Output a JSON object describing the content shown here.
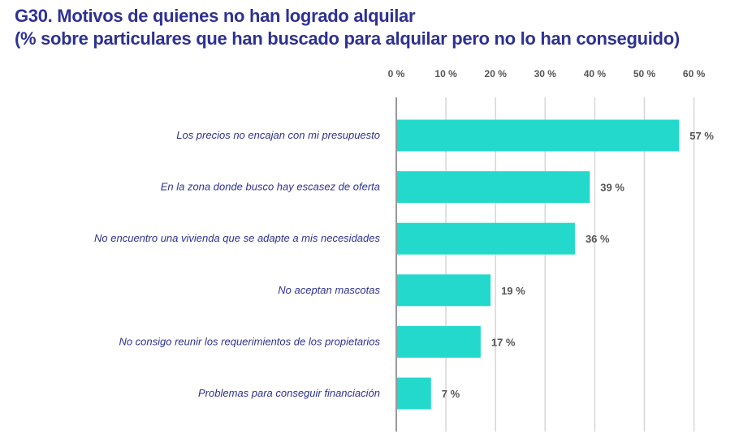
{
  "title_line1": "G30. Motivos de quienes no han logrado alquilar",
  "title_line2": "(% sobre particulares que han buscado para alquilar pero no lo han conseguido)",
  "chart_data": {
    "type": "bar",
    "orientation": "horizontal",
    "categories": [
      "Los precios no encajan con mi presupuesto",
      "En la zona donde busco hay escasez de oferta",
      "No encuentro una vivienda que se adapte a mis necesidades",
      "No aceptan mascotas",
      "No consigo reunir los requerimientos de los propietarios",
      "Problemas para conseguir financiación"
    ],
    "values": [
      57,
      39,
      36,
      19,
      17,
      7
    ],
    "value_labels": [
      "57 %",
      "39 %",
      "36 %",
      "19 %",
      "17 %",
      "7 %"
    ],
    "xlim": [
      0,
      60
    ],
    "x_ticks": [
      "0 %",
      "10 %",
      "20 %",
      "30 %",
      "40 %",
      "50 %",
      "60 %"
    ],
    "x_axis_position": "top",
    "grid": true,
    "bar_color": "#22d9cc"
  }
}
